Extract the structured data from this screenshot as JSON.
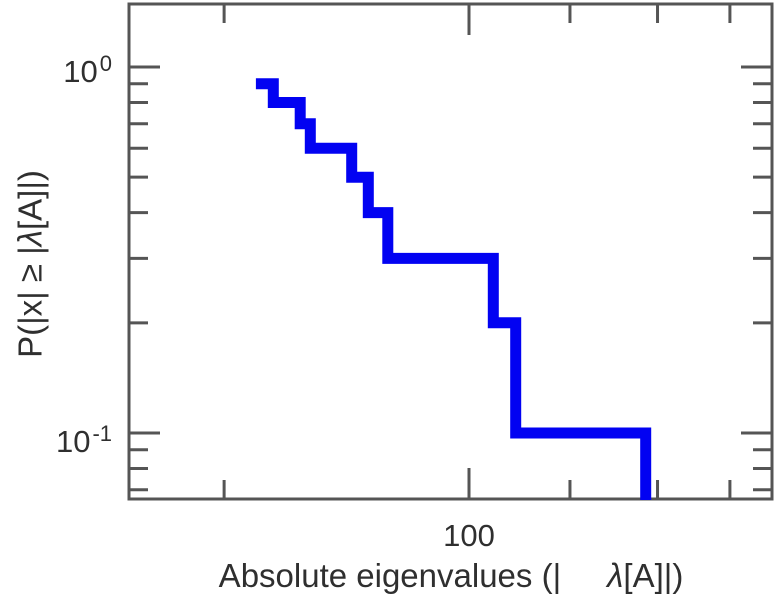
{
  "figure": {
    "background": "#ffffff",
    "xlabel": {
      "pre": "Absolute eigenvalues (|",
      "lambda": "λ",
      "post": "[A]|)"
    },
    "ylabel": {
      "pre": "P(|x| ≥ |",
      "lambda": "λ",
      "post": "[A]|)"
    },
    "x_tick_label": "100",
    "y_tick_labels": {
      "top": {
        "base": "10",
        "exp": "0"
      },
      "bottom": {
        "base": "10",
        "exp": "-1"
      }
    }
  },
  "colors": {
    "line": "#0202f2",
    "axis": "#555555",
    "text": "#2f2f2f"
  },
  "chart_data": {
    "type": "line",
    "subtype": "empirical-ccdf-step",
    "title": "",
    "xlabel": "Absolute eigenvalues (|λ[A]|)",
    "ylabel": "P(|x| ≥ |λ[A]|)",
    "x_scale": "log",
    "y_scale": "log",
    "xlim": [
      30,
      292
    ],
    "ylim": [
      0.066,
      1.49
    ],
    "grid": false,
    "legend": false,
    "x_axis": {
      "major_ticks": [
        100
      ],
      "major_tick_labels": [
        "100"
      ],
      "minor_ticks": [
        42,
        143,
        195,
        252
      ]
    },
    "y_axis": {
      "major_ticks": [
        1,
        0.1
      ],
      "major_tick_labels": [
        "10^0",
        "10^-1"
      ],
      "minor_ticks": [
        0.9,
        0.8,
        0.7,
        0.6,
        0.5,
        0.4,
        0.3,
        0.2,
        0.09,
        0.08,
        0.07
      ]
    },
    "series": [
      {
        "name": "absolute-eigenvalue-ccdf",
        "color": "#0202f2",
        "n_points": 10,
        "x_eigenvalues_approx": [
          47,
          50,
          55,
          57,
          66,
          70,
          75,
          109,
          118,
          187
        ],
        "survival_levels": [
          0.9,
          0.8,
          0.7,
          0.6,
          0.5,
          0.4,
          0.3,
          0.2,
          0.1,
          0
        ]
      }
    ]
  }
}
